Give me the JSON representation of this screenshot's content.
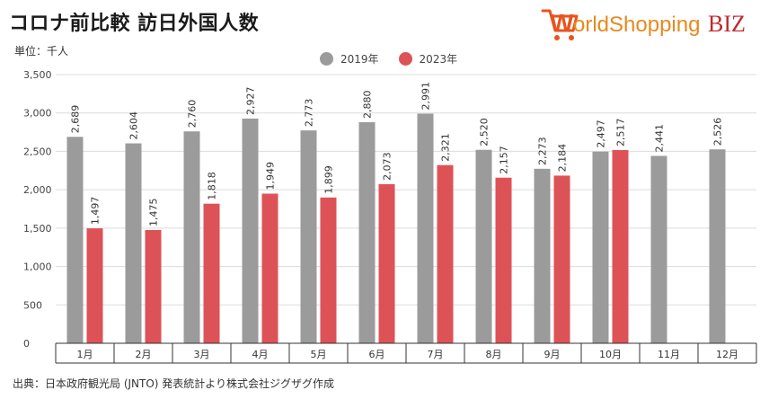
{
  "title": "コロナ前比較 訪日外国人数",
  "unit_label": "単位：千人",
  "source": "出典：日本政府観光局 (JNTO) 発表統計より株式会社ジグザグ作成",
  "brand": {
    "name_w": "W",
    "name_rest": "orldShopping",
    "name_biz": "BIZ",
    "colors": {
      "w": "#e8531f",
      "shopping": "#e8891f",
      "biz": "#c0282d",
      "cart": "#e8531f"
    }
  },
  "colors": {
    "s2019": "#9b9b9b",
    "s2023": "#dd5257"
  },
  "chart_data": {
    "type": "bar",
    "title": "コロナ前比較 訪日外国人数",
    "ylabel": "単位：千人",
    "xlabel": "",
    "categories": [
      "1月",
      "2月",
      "3月",
      "4月",
      "5月",
      "6月",
      "7月",
      "8月",
      "9月",
      "10月",
      "11月",
      "12月"
    ],
    "series": [
      {
        "name": "2019年",
        "values": [
          2689,
          2604,
          2760,
          2927,
          2773,
          2880,
          2991,
          2520,
          2273,
          2497,
          2441,
          2526
        ],
        "labels": [
          "2,689",
          "2,604",
          "2,760",
          "2,927",
          "2,773",
          "2,880",
          "2,991",
          "2,520",
          "2,273",
          "2,497",
          "2,441",
          "2,526"
        ]
      },
      {
        "name": "2023年",
        "values": [
          1497,
          1475,
          1818,
          1949,
          1899,
          2073,
          2321,
          2157,
          2184,
          2517,
          null,
          null
        ],
        "labels": [
          "1,497",
          "1,475",
          "1,818",
          "1,949",
          "1,899",
          "2,073",
          "2,321",
          "2,157",
          "2,184",
          "2,517",
          "",
          ""
        ]
      }
    ],
    "ylim": [
      0,
      3500
    ],
    "yticks": [
      0,
      500,
      1000,
      1500,
      2000,
      2500,
      3000,
      3500
    ],
    "ytick_labels": [
      "0",
      "500",
      "1,000",
      "1,500",
      "2,000",
      "2,500",
      "3,000",
      "3,500"
    ],
    "grid": true,
    "legend_position": "top-center"
  }
}
